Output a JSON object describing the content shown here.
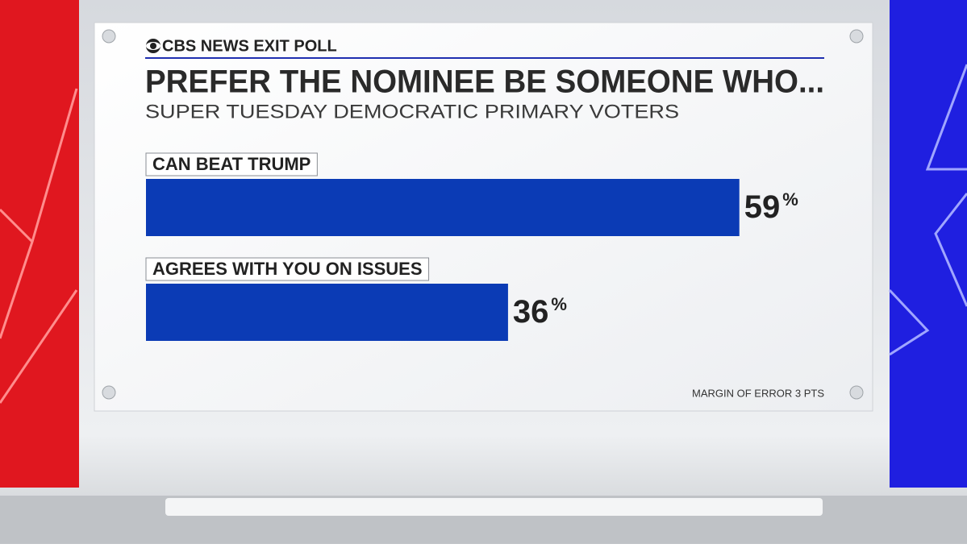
{
  "chart_data": {
    "type": "hbar",
    "source": "CBS NEWS EXIT POLL",
    "title": "PREFER THE NOMINEE BE SOMEONE WHO...",
    "subtitle": "SUPER TUESDAY DEMOCRATIC PRIMARY VOTERS",
    "categories": [
      "CAN BEAT TRUMP",
      "AGREES WITH YOU ON ISSUES"
    ],
    "values": [
      59,
      36
    ],
    "value_labels": [
      "59%",
      "36%"
    ],
    "color": "#0b3bb5",
    "note": "MARGIN OF ERROR 3 PTS"
  }
}
